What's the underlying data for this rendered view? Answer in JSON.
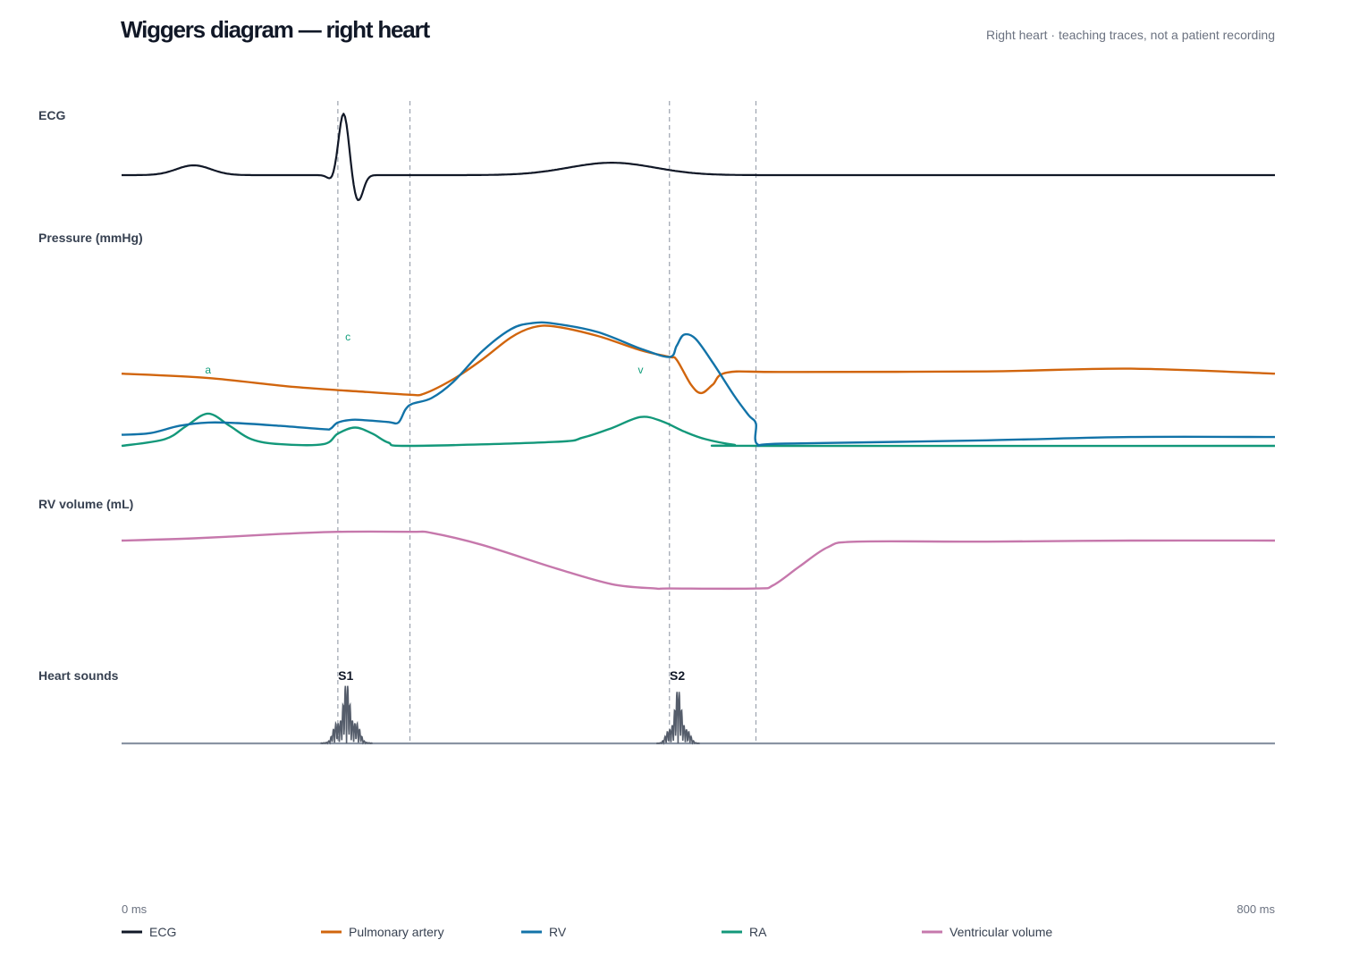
{
  "title": "Wiggers diagram — right heart",
  "subtitle": "Right heart · teaching traces, not a patient recording",
  "chart_data": {
    "type": "line",
    "x_unit": "ms",
    "xlim": [
      0,
      800
    ],
    "x_ticks": [
      "0 ms",
      "800 ms"
    ],
    "panels": [
      {
        "id": "ecg",
        "label": "ECG"
      },
      {
        "id": "pressure",
        "label": "Pressure (mmHg)"
      },
      {
        "id": "volume",
        "label": "RV volume (mL)"
      },
      {
        "id": "sounds",
        "label": "Heart sounds"
      }
    ],
    "event_lines_ms": [
      150,
      200,
      380,
      440
    ],
    "ecg": {
      "baseline": 0,
      "waves": [
        {
          "name": "P",
          "center": 50,
          "width": 12,
          "amp": 0.15
        },
        {
          "name": "Q",
          "center": 146,
          "width": 3,
          "amp": -0.08
        },
        {
          "name": "R",
          "center": 154,
          "width": 3.5,
          "amp": 0.95
        },
        {
          "name": "S",
          "center": 164,
          "width": 3.5,
          "amp": -0.4
        },
        {
          "name": "T",
          "center": 340,
          "width": 30,
          "amp": 0.19
        }
      ]
    },
    "pressure": {
      "ylim": [
        0,
        32
      ],
      "series": [
        {
          "name": "Pulmonary artery",
          "color": "#d1650d",
          "points": [
            [
              0,
              13
            ],
            [
              60,
              12.2
            ],
            [
              120,
              10.6
            ],
            [
              170,
              9.7
            ],
            [
              200,
              9.2
            ],
            [
              210,
              9.4
            ],
            [
              230,
              12
            ],
            [
              250,
              15.5
            ],
            [
              270,
              19.5
            ],
            [
              285,
              21.3
            ],
            [
              300,
              21.5
            ],
            [
              330,
              19.8
            ],
            [
              360,
              17.2
            ],
            [
              380,
              16
            ],
            [
              385,
              15.5
            ],
            [
              395,
              11
            ],
            [
              402,
              9.5
            ],
            [
              410,
              11
            ],
            [
              420,
              13.2
            ],
            [
              460,
              13.3
            ],
            [
              600,
              13.4
            ],
            [
              700,
              13.9
            ],
            [
              800,
              13
            ]
          ]
        },
        {
          "name": "RV",
          "color": "#1273a8",
          "points": [
            [
              0,
              2
            ],
            [
              20,
              2.3
            ],
            [
              40,
              3.6
            ],
            [
              60,
              4.2
            ],
            [
              80,
              4.1
            ],
            [
              110,
              3.6
            ],
            [
              140,
              3
            ],
            [
              145,
              3.1
            ],
            [
              150,
              4.2
            ],
            [
              160,
              4.7
            ],
            [
              170,
              4.6
            ],
            [
              185,
              4.3
            ],
            [
              192,
              4.2
            ],
            [
              197,
              6.6
            ],
            [
              202,
              7.6
            ],
            [
              215,
              8.6
            ],
            [
              230,
              11.5
            ],
            [
              250,
              17
            ],
            [
              270,
              21
            ],
            [
              285,
              22.1
            ],
            [
              300,
              22
            ],
            [
              330,
              20.5
            ],
            [
              360,
              17.5
            ],
            [
              380,
              16
            ],
            [
              385,
              18
            ],
            [
              390,
              20
            ],
            [
              398,
              19.3
            ],
            [
              410,
              15
            ],
            [
              425,
              9
            ],
            [
              435,
              5.5
            ],
            [
              440,
              4
            ],
            [
              441,
              0.3
            ],
            [
              460,
              0.4
            ],
            [
              600,
              1
            ],
            [
              700,
              1.6
            ],
            [
              800,
              1.6
            ]
          ]
        },
        {
          "name": "RA",
          "color": "#13987a",
          "points": [
            [
              0,
              0
            ],
            [
              30,
              1.2
            ],
            [
              45,
              3.6
            ],
            [
              60,
              5.8
            ],
            [
              75,
              3.6
            ],
            [
              90,
              1.2
            ],
            [
              110,
              0.3
            ],
            [
              140,
              0.3
            ],
            [
              150,
              2.2
            ],
            [
              162,
              3.3
            ],
            [
              174,
              2.2
            ],
            [
              185,
              0.6
            ],
            [
              200,
              0
            ],
            [
              300,
              0.7
            ],
            [
              320,
              1.5
            ],
            [
              340,
              3.2
            ],
            [
              360,
              5.2
            ],
            [
              375,
              4.4
            ],
            [
              390,
              2.6
            ],
            [
              405,
              1.2
            ],
            [
              425,
              0.2
            ],
            [
              440,
              0
            ],
            [
              800,
              0
            ]
          ]
        }
      ],
      "annotations": [
        {
          "text": "a",
          "x": 60,
          "y": 13
        },
        {
          "text": "c",
          "x": 157,
          "y": 19
        },
        {
          "text": "v",
          "x": 360,
          "y": 13
        }
      ]
    },
    "volume": {
      "name": "Ventricular volume",
      "color": "#c678ac",
      "ylim": [
        0,
        1
      ],
      "points": [
        [
          0,
          0.82
        ],
        [
          50,
          0.84
        ],
        [
          110,
          0.88
        ],
        [
          150,
          0.9
        ],
        [
          200,
          0.9
        ],
        [
          215,
          0.89
        ],
        [
          250,
          0.78
        ],
        [
          300,
          0.57
        ],
        [
          340,
          0.42
        ],
        [
          370,
          0.38
        ],
        [
          380,
          0.38
        ],
        [
          440,
          0.38
        ],
        [
          452,
          0.41
        ],
        [
          470,
          0.58
        ],
        [
          490,
          0.76
        ],
        [
          510,
          0.81
        ],
        [
          600,
          0.81
        ],
        [
          700,
          0.82
        ],
        [
          800,
          0.82
        ]
      ]
    },
    "heart_sounds": {
      "color": "#555d6b",
      "bursts": [
        {
          "label": "S1",
          "center": 156,
          "half_width": 18,
          "amp": 1.0
        },
        {
          "label": "S2",
          "center": 386,
          "half_width": 15,
          "amp": 0.9
        }
      ]
    },
    "legend": [
      {
        "name": "ECG",
        "color": "#111827"
      },
      {
        "name": "Pulmonary artery",
        "color": "#d1650d"
      },
      {
        "name": "RV",
        "color": "#1273a8"
      },
      {
        "name": "RA",
        "color": "#13987a"
      },
      {
        "name": "Ventricular volume",
        "color": "#c678ac"
      }
    ]
  }
}
